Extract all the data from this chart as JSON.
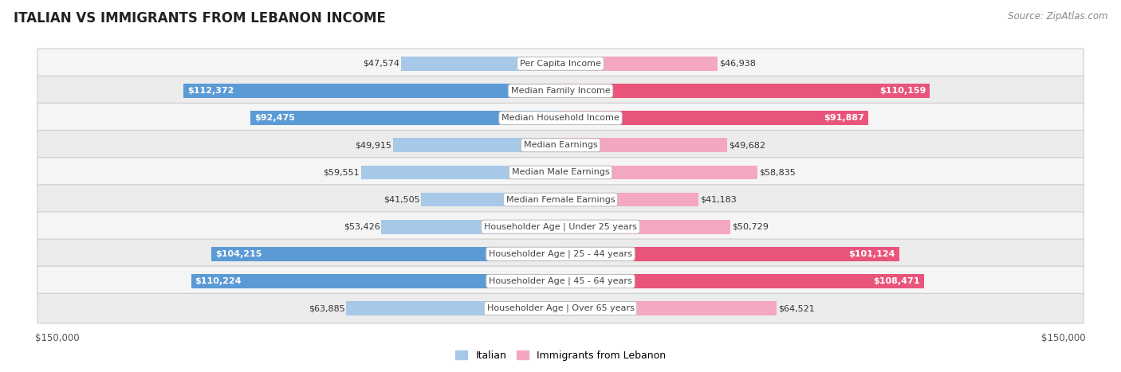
{
  "title": "Italian vs Immigrants from Lebanon Income",
  "title_display": "ITALIAN VS IMMIGRANTS FROM LEBANON INCOME",
  "source": "Source: ZipAtlas.com",
  "categories": [
    "Per Capita Income",
    "Median Family Income",
    "Median Household Income",
    "Median Earnings",
    "Median Male Earnings",
    "Median Female Earnings",
    "Householder Age | Under 25 years",
    "Householder Age | 25 - 44 years",
    "Householder Age | 45 - 64 years",
    "Householder Age | Over 65 years"
  ],
  "italian_values": [
    47574,
    112372,
    92475,
    49915,
    59551,
    41505,
    53426,
    104215,
    110224,
    63885
  ],
  "lebanon_values": [
    46938,
    110159,
    91887,
    49682,
    58835,
    41183,
    50729,
    101124,
    108471,
    64521
  ],
  "italian_labels": [
    "$47,574",
    "$112,372",
    "$92,475",
    "$49,915",
    "$59,551",
    "$41,505",
    "$53,426",
    "$104,215",
    "$110,224",
    "$63,885"
  ],
  "lebanon_labels": [
    "$46,938",
    "$110,159",
    "$91,887",
    "$49,682",
    "$58,835",
    "$41,183",
    "$50,729",
    "$101,124",
    "$108,471",
    "$64,521"
  ],
  "italian_color_light": "#a8c8e8",
  "italian_color_dark": "#5b9bd5",
  "lebanon_color_light": "#f4a8c0",
  "lebanon_color_dark": "#e8547a",
  "max_value": 150000,
  "background_color": "#ffffff",
  "row_bg_even": "#f5f5f5",
  "row_bg_odd": "#ececec",
  "legend_italian": "Italian",
  "legend_lebanon": "Immigrants from Lebanon",
  "title_fontsize": 12,
  "source_fontsize": 8.5,
  "bar_label_fontsize": 8,
  "category_fontsize": 8,
  "large_threshold": 75000,
  "medium_threshold": 0
}
